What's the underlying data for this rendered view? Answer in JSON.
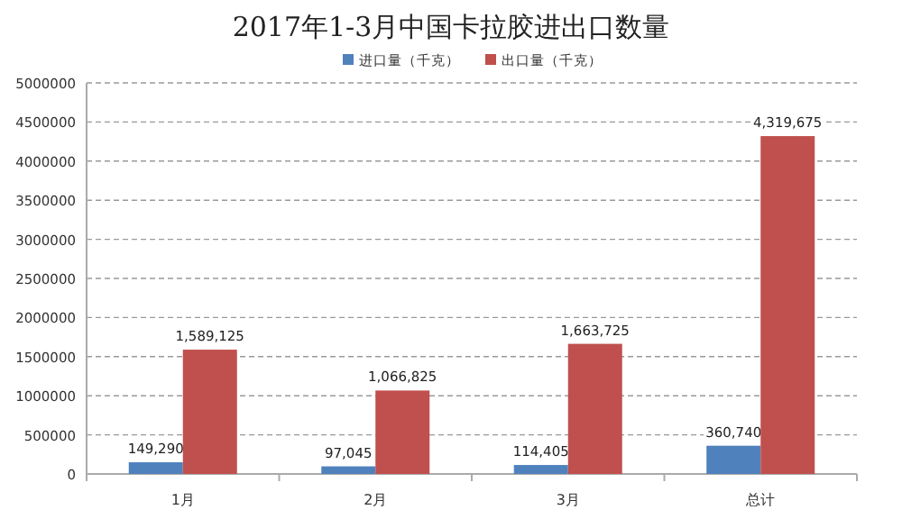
{
  "chart_data": {
    "type": "bar",
    "title": "2017年1-3月中国卡拉胶进出口数量",
    "categories": [
      "1月",
      "2月",
      "3月",
      "总计"
    ],
    "series": [
      {
        "name": "进口量（千克）",
        "color": "#4f81bd",
        "values": [
          149290,
          97045,
          114405,
          360740
        ],
        "value_labels": [
          "149,290",
          "97,045",
          "114,405",
          "360,740"
        ]
      },
      {
        "name": "出口量（千克）",
        "color": "#c0504d",
        "values": [
          1589125,
          1066825,
          1663725,
          4319675
        ],
        "value_labels": [
          "1,589,125",
          "1,066,825",
          "1,663,725",
          "4,319,675"
        ]
      }
    ],
    "ylim": [
      0,
      5000000
    ],
    "yticks": [
      0,
      500000,
      1000000,
      1500000,
      2000000,
      2500000,
      3000000,
      3500000,
      4000000,
      4500000,
      5000000
    ],
    "grid": "y",
    "legend": "top"
  }
}
